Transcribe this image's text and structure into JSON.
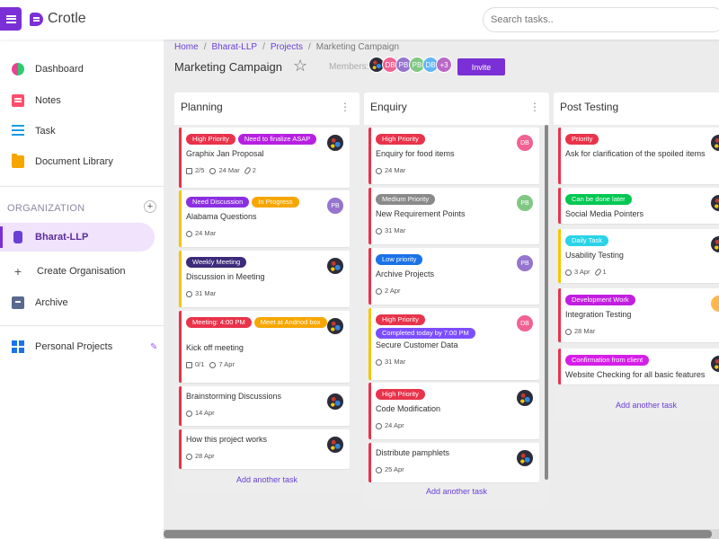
{
  "app": {
    "name": "Crotle"
  },
  "search": {
    "placeholder": "Search tasks.."
  },
  "sidebar": {
    "items": [
      {
        "label": "Dashboard",
        "icon": "dashboard-icon"
      },
      {
        "label": "Notes",
        "icon": "notes-icon"
      },
      {
        "label": "Task",
        "icon": "task-list-icon"
      },
      {
        "label": "Document Library",
        "icon": "folder-icon"
      }
    ],
    "org_heading": "ORGANIZATION",
    "org_items": [
      {
        "label": "Bharat-LLP",
        "icon": "organization-icon",
        "active": true
      },
      {
        "label": "Create Organisation",
        "icon": "plus-icon"
      },
      {
        "label": "Archive",
        "icon": "archive-icon"
      }
    ],
    "personal": {
      "label": "Personal Projects",
      "icon": "grid-icon"
    }
  },
  "breadcrumb": [
    "Home",
    "Bharat-LLP",
    "Projects",
    "Marketing Campaign"
  ],
  "page": {
    "title": "Marketing Campaign",
    "members_label": "Members:",
    "members": [
      {
        "initials": "",
        "color": "#2c2c3a",
        "photo": true
      },
      {
        "initials": "DB",
        "color": "#f06292"
      },
      {
        "initials": "PB",
        "color": "#9575cd"
      },
      {
        "initials": "PB",
        "color": "#81c784"
      },
      {
        "initials": "DB",
        "color": "#64b5f6"
      },
      {
        "initials": "+3",
        "color": "#ba68c8"
      }
    ],
    "invite_label": "Invite"
  },
  "colors": {
    "accent": "#7b2fd6",
    "high_priority": "#e8334a",
    "urgent": "#b620e0",
    "discussion": "#8b2fe0",
    "in_progress": "#f7a600",
    "weekly": "#3d2a7a",
    "medium": "#8a8a8a",
    "low": "#1a73e8",
    "completed": "#7c4dff",
    "done_later": "#00c853",
    "daily": "#29d3e8",
    "dev_work": "#c21ee0",
    "confirmation": "#d51fe8"
  },
  "columns": [
    {
      "title": "Planning",
      "add_label": "Add another task",
      "cards": [
        {
          "tags": [
            {
              "text": "High Priority",
              "color": "#e8334a"
            },
            {
              "text": "Need to finalize ASAP",
              "color": "#b620e0"
            }
          ],
          "title": "Graphix Jan Proposal",
          "checklist": "2/5",
          "date": "24 Mar",
          "attachments": "2",
          "border": "#e8334a",
          "avatar": {
            "photo": true
          }
        },
        {
          "tags": [
            {
              "text": "Need Discussion",
              "color": "#8b2fe0"
            },
            {
              "text": "In Progress",
              "color": "#f7a600"
            }
          ],
          "title": "Alabama Questions",
          "date": "24 Mar",
          "border": "#f7c600",
          "avatar": {
            "initials": "PB",
            "color": "#9575cd"
          }
        },
        {
          "tags": [
            {
              "text": "Weekly Meeting",
              "color": "#3d2a7a"
            }
          ],
          "title": "Discussion in Meeting",
          "date": "31 Mar",
          "border": "#f7c600",
          "avatar": {
            "photo": true
          }
        },
        {
          "tags": [
            {
              "text": "Meeting: 4:00 PM",
              "color": "#e8334a"
            },
            {
              "text": "Meet at Andriod box",
              "color": "#f7a600"
            }
          ],
          "title": "Kick off meeting",
          "checklist": "0/1",
          "date": "7 Apr",
          "border": "#e8334a",
          "avatar": {
            "photo": true
          }
        },
        {
          "tags": [],
          "title": "Brainstorming Discussions",
          "date": "14 Apr",
          "border": "#e8334a",
          "avatar": {
            "photo": true
          }
        },
        {
          "tags": [],
          "title": "How this project works",
          "date": "28 Apr",
          "border": "#e8334a",
          "avatar": {
            "photo": true
          }
        }
      ]
    },
    {
      "title": "Enquiry",
      "add_label": "Add another task",
      "cards": [
        {
          "tags": [
            {
              "text": "High Priority",
              "color": "#e8334a"
            }
          ],
          "title": "Enquiry for food items",
          "date": "24 Mar",
          "border": "#e8334a",
          "avatar": {
            "initials": "DB",
            "color": "#f06292"
          }
        },
        {
          "tags": [
            {
              "text": "Medium Priority",
              "color": "#8a8a8a"
            }
          ],
          "title": "New Requirement Points",
          "date": "31 Mar",
          "border": "#e8334a",
          "avatar": {
            "initials": "PB",
            "color": "#81c784"
          }
        },
        {
          "tags": [
            {
              "text": "Low priority",
              "color": "#1a73e8"
            }
          ],
          "title": "Archive Projects",
          "date": "2 Apr",
          "border": "#e8334a",
          "avatar": {
            "initials": "PB",
            "color": "#9575cd"
          }
        },
        {
          "tags": [
            {
              "text": "High Priority",
              "color": "#e8334a"
            },
            {
              "text": "Completed today by 7:00 PM",
              "color": "#7c4dff"
            }
          ],
          "title": "Secure Customer Data",
          "date": "31 Mar",
          "border": "#f7c600",
          "avatar": {
            "initials": "DB",
            "color": "#f06292"
          }
        },
        {
          "tags": [
            {
              "text": "High Priority",
              "color": "#e8334a"
            }
          ],
          "title": "Code Modification",
          "date": "24 Apr",
          "border": "#e8334a",
          "avatar": {
            "photo": true
          }
        },
        {
          "tags": [],
          "title": "Distribute pamphlets",
          "date": "25 Apr",
          "border": "#e8334a",
          "avatar": {
            "photo": true
          }
        }
      ]
    },
    {
      "title": "Post Testing",
      "add_label": "Add another task",
      "cards": [
        {
          "tags": [
            {
              "text": "Priority",
              "color": "#e8334a"
            }
          ],
          "title": "Ask for clarification of the spoiled items",
          "border": "#e8334a",
          "avatar": {
            "photo": true
          }
        },
        {
          "tags": [
            {
              "text": "Can be done later",
              "color": "#00c853"
            }
          ],
          "title": "Social Media Pointers",
          "border": "#e8334a",
          "avatar": {
            "photo": true
          }
        },
        {
          "tags": [
            {
              "text": "Daily Task",
              "color": "#29d3e8"
            }
          ],
          "title": "Usability Testing",
          "date": "3 Apr",
          "attachments": "1",
          "border": "#f7c600",
          "avatar": {
            "photo": true
          }
        },
        {
          "tags": [
            {
              "text": "Development Work",
              "color": "#c21ee0"
            }
          ],
          "title": "Integration Testing",
          "date": "28 Mar",
          "border": "#e8334a",
          "avatar": {
            "initials": "",
            "color": "#ffb74d"
          }
        },
        {
          "tags": [
            {
              "text": "Confirmation from client",
              "color": "#d51fe8"
            }
          ],
          "title": "Website Checking for all basic features",
          "border": "#e8334a",
          "avatar": {
            "photo": true
          }
        }
      ]
    }
  ]
}
